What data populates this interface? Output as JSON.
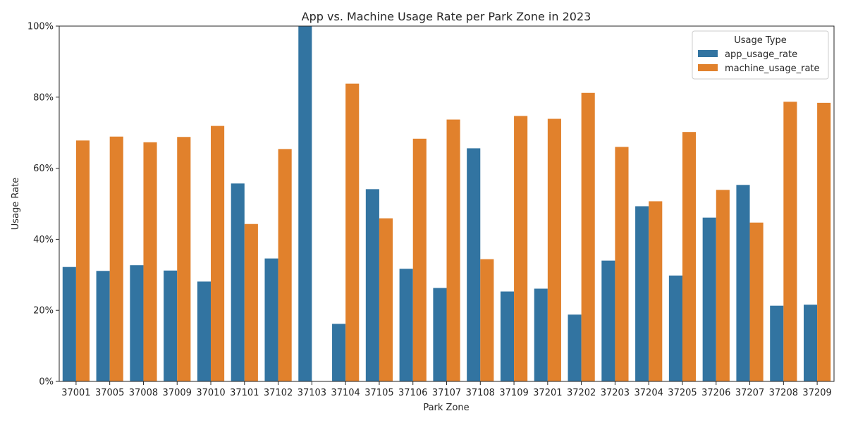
{
  "chart_data": {
    "type": "bar",
    "title": "App vs. Machine Usage Rate per Park Zone in 2023",
    "xlabel": "Park Zone",
    "ylabel": "Usage Rate",
    "ylim": [
      0,
      1
    ],
    "y_ticks": [
      0,
      0.2,
      0.4,
      0.6,
      0.8,
      1.0
    ],
    "y_tick_labels": [
      "0%",
      "20%",
      "40%",
      "60%",
      "80%",
      "100%"
    ],
    "categories": [
      "37001",
      "37005",
      "37008",
      "37009",
      "37010",
      "37101",
      "37102",
      "37103",
      "37104",
      "37105",
      "37106",
      "37107",
      "37108",
      "37109",
      "37201",
      "37202",
      "37203",
      "37204",
      "37205",
      "37206",
      "37207",
      "37208",
      "37209"
    ],
    "legend": {
      "title": "Usage Type",
      "placement": "top-right"
    },
    "grid": false,
    "series": [
      {
        "name": "app_usage_rate",
        "color": "#3274a1",
        "values": [
          0.322,
          0.311,
          0.327,
          0.312,
          0.281,
          0.557,
          0.346,
          1.0,
          0.162,
          0.541,
          0.317,
          0.263,
          0.656,
          0.253,
          0.261,
          0.188,
          0.34,
          0.493,
          0.298,
          0.461,
          0.553,
          0.213,
          0.216
        ]
      },
      {
        "name": "machine_usage_rate",
        "color": "#e1812c",
        "values": [
          0.678,
          0.689,
          0.673,
          0.688,
          0.719,
          0.443,
          0.654,
          0.0,
          0.838,
          0.459,
          0.683,
          0.737,
          0.344,
          0.747,
          0.739,
          0.812,
          0.66,
          0.507,
          0.702,
          0.539,
          0.447,
          0.787,
          0.784
        ]
      }
    ]
  }
}
